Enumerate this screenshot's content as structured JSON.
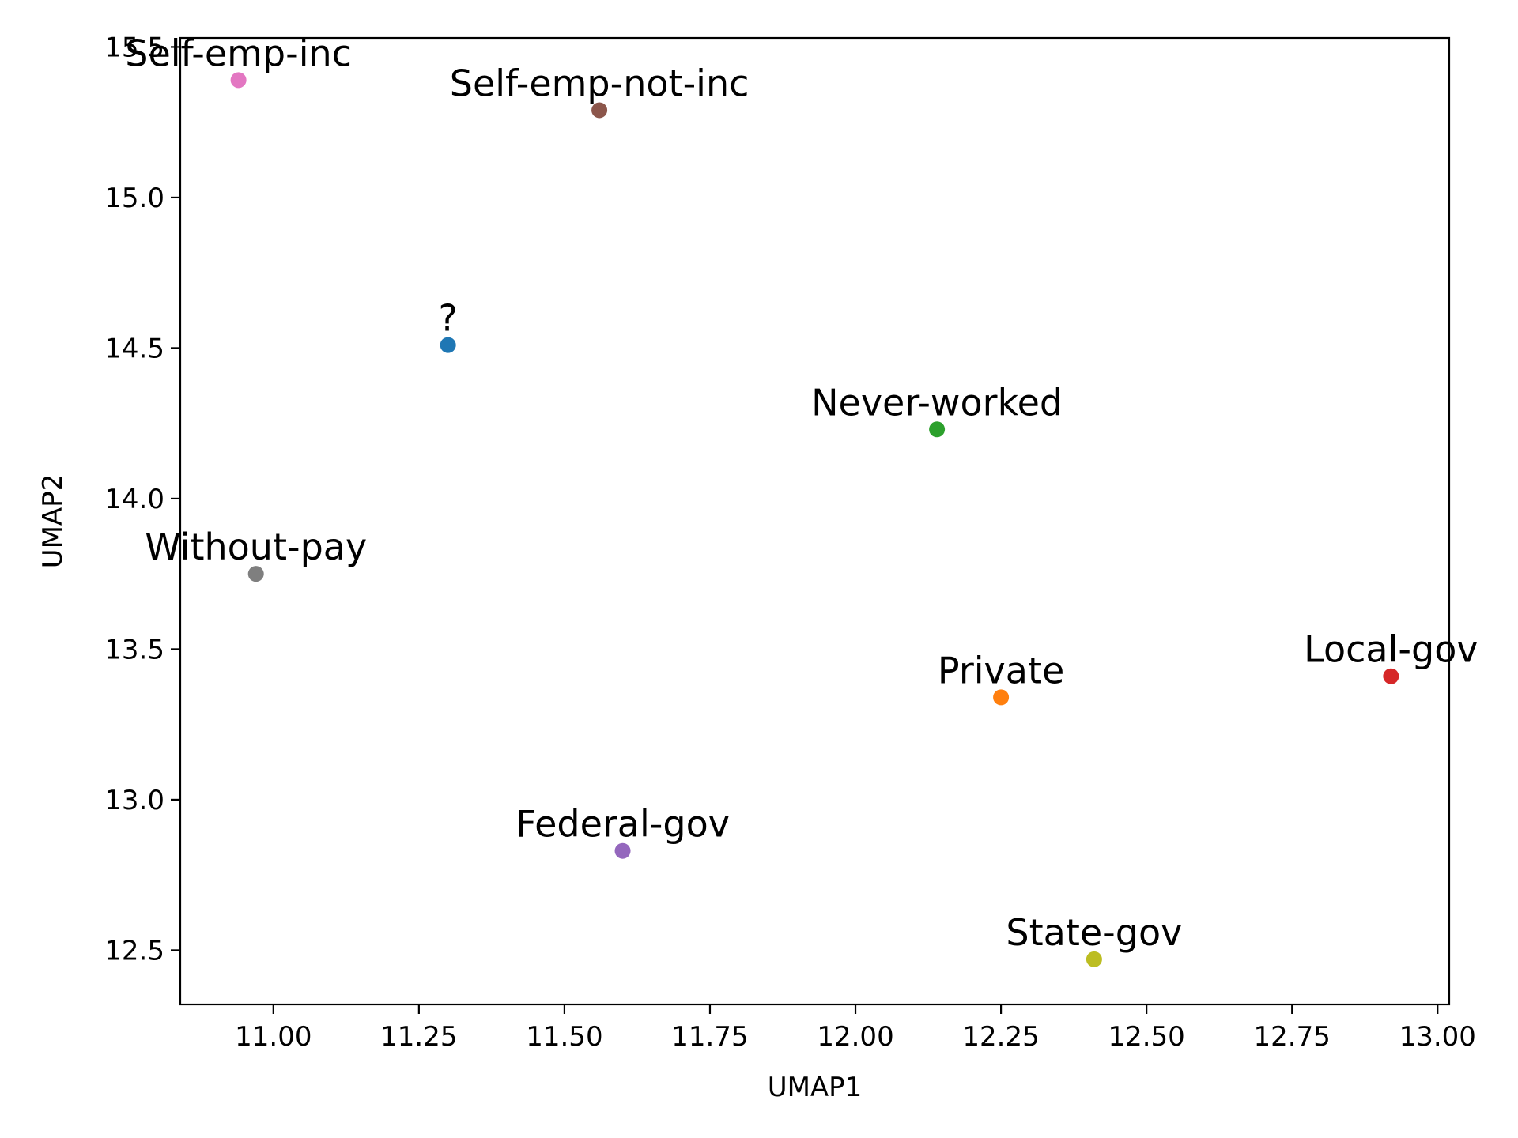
{
  "chart_data": {
    "type": "scatter",
    "title": "",
    "xlabel": "UMAP1",
    "ylabel": "UMAP2",
    "xlim": [
      10.84,
      13.02
    ],
    "ylim": [
      12.32,
      15.53
    ],
    "xticks": [
      "11.00",
      "11.25",
      "11.50",
      "11.75",
      "12.00",
      "12.25",
      "12.50",
      "12.75",
      "13.00"
    ],
    "yticks": [
      "12.5",
      "13.0",
      "13.5",
      "14.0",
      "14.5",
      "15.0",
      "15.5"
    ],
    "grid": false,
    "points": [
      {
        "label": "?",
        "x": 11.3,
        "y": 14.51,
        "color": "#1f77b4"
      },
      {
        "label": "Federal-gov",
        "x": 11.6,
        "y": 12.83,
        "color": "#9467bd"
      },
      {
        "label": "Local-gov",
        "x": 12.92,
        "y": 13.41,
        "color": "#d62728"
      },
      {
        "label": "Never-worked",
        "x": 12.14,
        "y": 14.23,
        "color": "#2ca02c"
      },
      {
        "label": "Private",
        "x": 12.25,
        "y": 13.34,
        "color": "#ff7f0e"
      },
      {
        "label": "Self-emp-inc",
        "x": 10.94,
        "y": 15.39,
        "color": "#e377c2"
      },
      {
        "label": "Self-emp-not-inc",
        "x": 11.56,
        "y": 15.29,
        "color": "#8c564b"
      },
      {
        "label": "State-gov",
        "x": 12.41,
        "y": 12.47,
        "color": "#bcbd22"
      },
      {
        "label": "Without-pay",
        "x": 10.97,
        "y": 13.75,
        "color": "#7f7f7f"
      }
    ]
  }
}
